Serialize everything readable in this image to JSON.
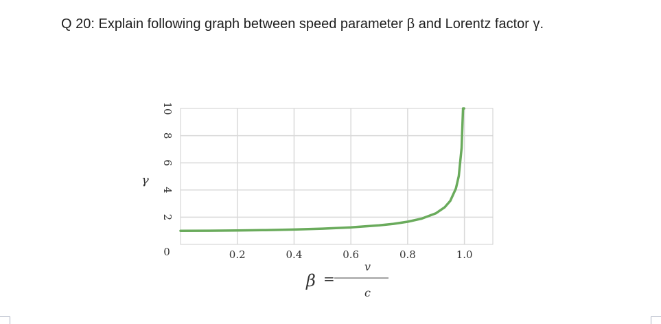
{
  "question": "Q 20: Explain following graph between speed parameter β and Lorentz factor γ.",
  "chart_data": {
    "type": "line",
    "x": [
      0,
      0.1,
      0.2,
      0.3,
      0.4,
      0.5,
      0.6,
      0.7,
      0.75,
      0.8,
      0.85,
      0.9,
      0.93,
      0.95,
      0.97,
      0.98,
      0.99,
      0.995,
      0.999
    ],
    "y": [
      1,
      1.005,
      1.02,
      1.048,
      1.091,
      1.155,
      1.25,
      1.4,
      1.512,
      1.667,
      1.898,
      2.294,
      2.72,
      3.203,
      4.113,
      5.025,
      7.089,
      10.0,
      10.0
    ],
    "xlim": [
      0,
      1.1
    ],
    "ylim": [
      0,
      10
    ],
    "x_ticks": [
      "0.2",
      "0.4",
      "0.6",
      "0.8",
      "1.0"
    ],
    "x_tick_values": [
      0.2,
      0.4,
      0.6,
      0.8,
      1.0
    ],
    "y_ticks": [
      "10",
      "8",
      "6",
      "4",
      "2",
      "0"
    ],
    "y_tick_values": [
      10,
      8,
      6,
      4,
      2,
      0
    ],
    "ylabel": "γ",
    "xlabel_lhs": "β",
    "xlabel_eq": "=",
    "xlabel_num": "v",
    "xlabel_den": "c",
    "grid": true,
    "line_color": "#6aab5c",
    "grid_color": "#d9d9d9"
  }
}
